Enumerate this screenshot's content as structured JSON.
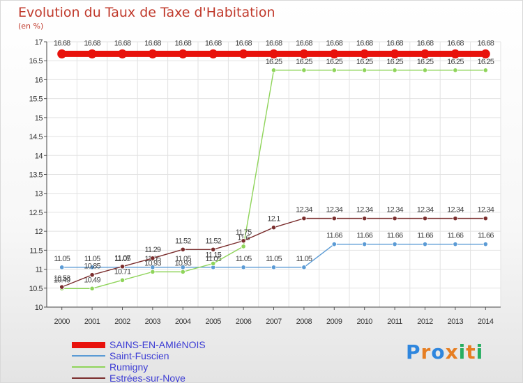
{
  "header": {
    "title": "Evolution du Taux de Taxe d'Habitation",
    "subtitle": "(en %)"
  },
  "logo": {
    "text": "Proxiti",
    "colors": [
      "#2e86de",
      "#e67e22",
      "#2e86de",
      "#e67e22",
      "#27ae60",
      "#e67e22",
      "#27ae60"
    ]
  },
  "chart_data": {
    "type": "line",
    "title": "Evolution du Taux de Taxe d'Habitation",
    "ylabel": "(en %)",
    "xlabel": "",
    "x": [
      "2000",
      "2001",
      "2002",
      "2003",
      "2004",
      "2005",
      "2006",
      "2007",
      "2008",
      "2009",
      "2010",
      "2011",
      "2012",
      "2013",
      "2014"
    ],
    "ylim": [
      10,
      17
    ],
    "yticks": [
      "10",
      "10.5",
      "11",
      "11.5",
      "12",
      "12.5",
      "13",
      "13.5",
      "14",
      "14.5",
      "15",
      "15.5",
      "16",
      "16.5",
      "17"
    ],
    "grid": true,
    "series": [
      {
        "name": "SAINS-EN-AMIéNOIS",
        "color": "#e8120c",
        "values": [
          16.68,
          16.68,
          16.68,
          16.68,
          16.68,
          16.68,
          16.68,
          16.68,
          16.68,
          16.68,
          16.68,
          16.68,
          16.68,
          16.68,
          16.68
        ],
        "labels": [
          "16.68",
          "16.68",
          "16.68",
          "16.68",
          "16.68",
          "16.68",
          "16.68",
          "16.68",
          "16.68",
          "16.68",
          "16.68",
          "16.68",
          "16.68",
          "16.68",
          "16.68"
        ]
      },
      {
        "name": "Saint-Fuscien",
        "color": "#5b9bd5",
        "values": [
          11.05,
          11.05,
          11.05,
          11.05,
          11.05,
          11.05,
          11.05,
          11.05,
          11.05,
          11.66,
          11.66,
          11.66,
          11.66,
          11.66,
          11.66
        ],
        "labels": [
          "11.05",
          "11.05",
          "11.05",
          "11.05",
          "11.05",
          "11.05",
          "11.05",
          "11.05",
          "11.05",
          "11.66",
          "11.66",
          "11.66",
          "11.66",
          "11.66",
          "11.66"
        ]
      },
      {
        "name": "Rumigny",
        "color": "#8fd45a",
        "values": [
          10.49,
          10.49,
          10.71,
          10.93,
          10.93,
          11.15,
          11.6,
          16.25,
          16.25,
          16.25,
          16.25,
          16.25,
          16.25,
          16.25,
          16.25
        ],
        "labels": [
          "10.49",
          "10.49",
          "10.71",
          "10.93",
          "10.93",
          "11.15",
          "11.6",
          "16.25",
          "16.25",
          "16.25",
          "16.25",
          "16.25",
          "16.25",
          "16.25",
          "16.25"
        ]
      },
      {
        "name": "Estrées-sur-Noye",
        "color": "#7a2d2d",
        "values": [
          10.53,
          10.85,
          11.07,
          11.29,
          11.52,
          11.52,
          11.75,
          12.1,
          12.34,
          12.34,
          12.34,
          12.34,
          12.34,
          12.34,
          12.34
        ],
        "labels": [
          "10.53",
          "10.85",
          "11.07",
          "11.29",
          "11.52",
          "11.52",
          "11.75",
          "12.1",
          "12.34",
          "12.34",
          "12.34",
          "12.34",
          "12.34",
          "12.34",
          "12.34"
        ]
      }
    ]
  }
}
